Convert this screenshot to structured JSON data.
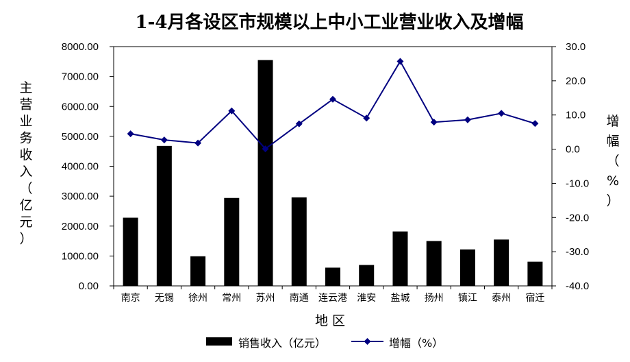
{
  "chart_data": {
    "type": "bar+line",
    "title": "1-4月各设区市规模以上中小工业营业收入及增幅",
    "categories": [
      "南京",
      "无锡",
      "徐州",
      "常州",
      "苏州",
      "南通",
      "连云港",
      "淮安",
      "盐城",
      "扬州",
      "镇江",
      "泰州",
      "宿迁"
    ],
    "series": [
      {
        "name": "销售收入（亿元）",
        "type": "bar",
        "axis": "left",
        "values": [
          2280,
          4680,
          990,
          2940,
          7550,
          2960,
          610,
          700,
          1820,
          1500,
          1220,
          1550,
          810
        ],
        "color": "#000000"
      },
      {
        "name": "增幅（%）",
        "type": "line",
        "axis": "right",
        "values": [
          4.5,
          2.7,
          1.8,
          11.2,
          0.1,
          7.4,
          14.6,
          9.1,
          25.7,
          7.9,
          8.6,
          10.5,
          7.5
        ],
        "color": "#000080",
        "marker": "diamond"
      }
    ],
    "xlabel": "地 区",
    "ylabel_left": [
      "主",
      "营",
      "业",
      "务",
      "收",
      "入",
      "（",
      "亿",
      "元",
      "）"
    ],
    "ylabel_right": [
      "增",
      "幅",
      "（",
      "%",
      "）"
    ],
    "ylim_left": [
      0,
      8000
    ],
    "yticks_left": [
      "0.00",
      "1000.00",
      "2000.00",
      "3000.00",
      "4000.00",
      "5000.00",
      "6000.00",
      "7000.00",
      "8000.00"
    ],
    "ylim_right": [
      -40,
      30
    ],
    "yticks_right": [
      "-40.0",
      "-30.0",
      "-20.0",
      "-10.0",
      "0.0",
      "10.0",
      "20.0",
      "30.0"
    ],
    "grid": false,
    "legend_position": "bottom"
  }
}
